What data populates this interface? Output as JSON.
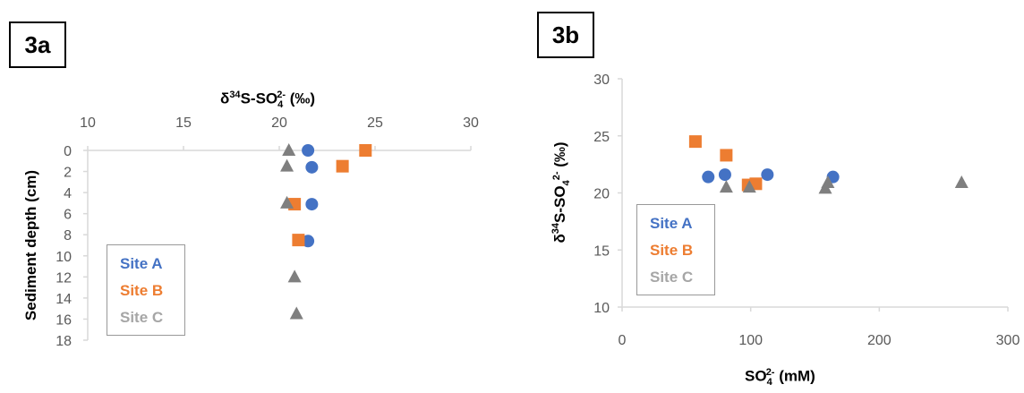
{
  "colors": {
    "site_a": "#4472C4",
    "site_b": "#ED7D31",
    "site_c": "#7F7F7F",
    "axis": "#D9D9D9",
    "tick_text": "#595959"
  },
  "chart_data": [
    {
      "panel": "3a",
      "type": "scatter",
      "xlabel": "δ34S-SO42- (‰)",
      "ylabel": "Sediment depth (cm)",
      "x_axis_position": "top",
      "y_inverted": true,
      "xlim": [
        10,
        30
      ],
      "ylim": [
        0,
        18
      ],
      "x_ticks": [
        "10",
        "15",
        "20",
        "25",
        "30"
      ],
      "y_ticks": [
        "0",
        "2",
        "4",
        "6",
        "8",
        "10",
        "12",
        "14",
        "16",
        "18"
      ],
      "grid": false,
      "legend_position": "bottom-left",
      "series": [
        {
          "name": "Site A",
          "marker": "circle",
          "color": "#4472C4",
          "points": [
            [
              21.5,
              0
            ],
            [
              21.7,
              1.6
            ],
            [
              21.7,
              5.1
            ],
            [
              21.5,
              8.6
            ]
          ]
        },
        {
          "name": "Site B",
          "marker": "square",
          "color": "#ED7D31",
          "points": [
            [
              24.5,
              0
            ],
            [
              23.3,
              1.5
            ],
            [
              20.8,
              5.1
            ],
            [
              21.0,
              8.5
            ]
          ]
        },
        {
          "name": "Site C",
          "marker": "triangle",
          "color": "#7F7F7F",
          "points": [
            [
              20.5,
              0
            ],
            [
              20.4,
              1.5
            ],
            [
              20.4,
              5.0
            ],
            [
              20.8,
              12.0
            ],
            [
              20.9,
              15.5
            ]
          ]
        }
      ]
    },
    {
      "panel": "3b",
      "type": "scatter",
      "xlabel": "SO42- (mM)",
      "ylabel": "δ34S-SO42- (‰)",
      "xlim": [
        0,
        300
      ],
      "ylim": [
        10,
        30
      ],
      "x_ticks": [
        "0",
        "100",
        "200",
        "300"
      ],
      "y_ticks": [
        "10",
        "15",
        "20",
        "25",
        "30"
      ],
      "grid": false,
      "legend_position": "bottom-left",
      "series": [
        {
          "name": "Site A",
          "marker": "circle",
          "color": "#4472C4",
          "points": [
            [
              67,
              21.4
            ],
            [
              80,
              21.6
            ],
            [
              113,
              21.6
            ],
            [
              164,
              21.4
            ]
          ]
        },
        {
          "name": "Site B",
          "marker": "square",
          "color": "#ED7D31",
          "points": [
            [
              57,
              24.5
            ],
            [
              81,
              23.3
            ],
            [
              98,
              20.7
            ],
            [
              104,
              20.8
            ]
          ]
        },
        {
          "name": "Site C",
          "marker": "triangle",
          "color": "#7F7F7F",
          "points": [
            [
              81,
              20.5
            ],
            [
              99,
              20.5
            ],
            [
              158,
              20.4
            ],
            [
              160,
              20.9
            ],
            [
              264,
              20.9
            ]
          ]
        }
      ]
    }
  ],
  "panels": {
    "a_label": "3a",
    "b_label": "3b"
  },
  "legend": {
    "site_a": "Site A",
    "site_b": "Site B",
    "site_c": "Site C"
  },
  "titles": {
    "a_x_main": "δ",
    "a_x_sup1": "34",
    "a_x_mid": "S-SO",
    "a_x_sub": "4",
    "a_x_sup2": "2-",
    "a_x_unit": " (‰)",
    "a_y": "Sediment depth (cm)",
    "b_x_main": "SO",
    "b_x_sub": "4",
    "b_x_sup": "2-",
    "b_x_unit": " (mM)",
    "b_y": "δ34S-SO42- (‰)"
  }
}
